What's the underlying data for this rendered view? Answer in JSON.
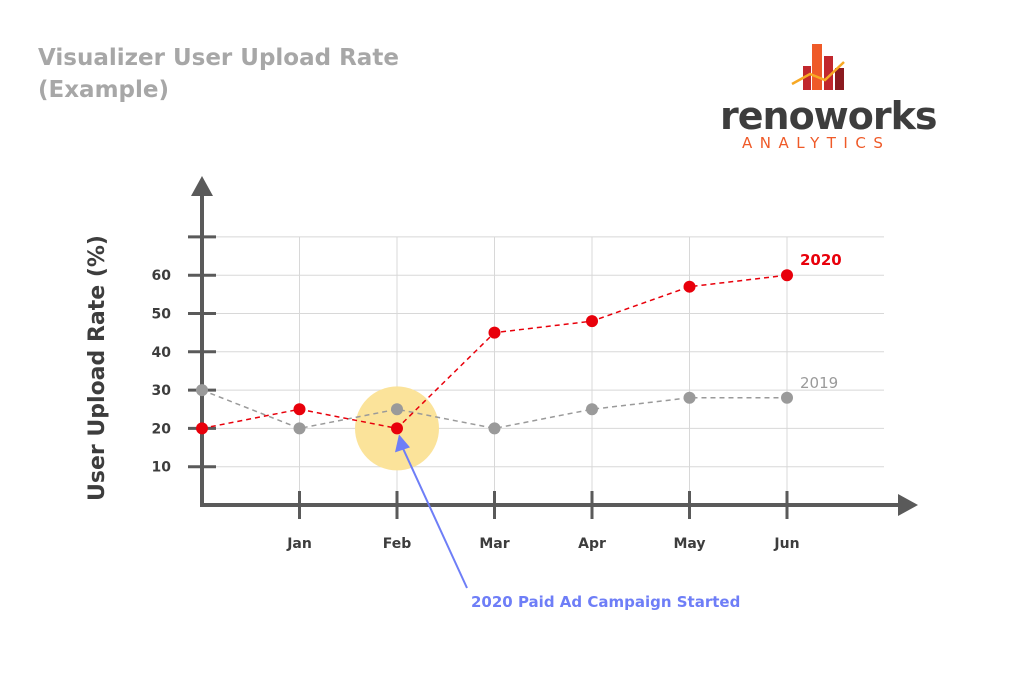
{
  "header": {
    "title_line1": "Visualizer User Upload Rate",
    "title_line2": "(Example)"
  },
  "logo": {
    "word": "renoworks",
    "sub": "ANALYTICS",
    "icon": "building-chart-logo-icon",
    "colors": {
      "dark": "#3d3d3d",
      "accent": "#ef5a28",
      "red": "#c1272d",
      "gold": "#f7a823"
    }
  },
  "colors": {
    "series_2020": "#e8000b",
    "series_2019": "#9a9a9a",
    "axis": "#5a5a5a",
    "grid": "#d8d8d8",
    "highlight": "#fbe39a",
    "annotation": "#6e7ef7"
  },
  "chart_data": {
    "type": "line",
    "ylabel": "User Upload Rate (%)",
    "xlabel": "",
    "categories": [
      "",
      "Jan",
      "Feb",
      "Mar",
      "Apr",
      "May",
      "Jun"
    ],
    "yticks": [
      10,
      20,
      30,
      40,
      50,
      60
    ],
    "ylim": [
      0,
      70
    ],
    "grid": true,
    "series": [
      {
        "name": "2020",
        "values": [
          20,
          25,
          20,
          45,
          48,
          57,
          60
        ]
      },
      {
        "name": "2019",
        "values": [
          30,
          20,
          25,
          20,
          25,
          28,
          28
        ]
      }
    ],
    "annotation": {
      "text": "2020 Paid Ad Campaign Started",
      "category": "Feb",
      "value": 20
    }
  }
}
